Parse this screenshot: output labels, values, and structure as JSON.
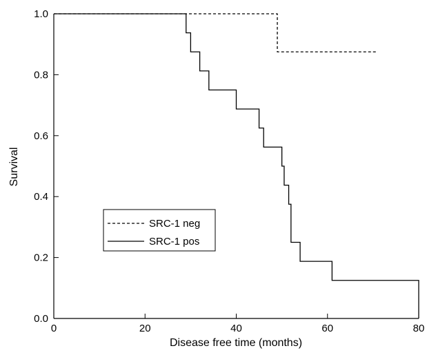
{
  "chart_data": {
    "type": "line",
    "subtype": "step",
    "title": "",
    "xlabel": "Disease free time (months)",
    "ylabel": "Survival",
    "xlim": [
      0,
      80
    ],
    "ylim": [
      0,
      1
    ],
    "xticks": [
      "0",
      "20",
      "40",
      "60",
      "80"
    ],
    "yticks": [
      "0.0",
      "0.2",
      "0.4",
      "0.6",
      "0.8",
      "1.0"
    ],
    "xtick_values": [
      0,
      20,
      40,
      60,
      80
    ],
    "ytick_values": [
      0,
      0.2,
      0.4,
      0.6,
      0.8,
      1.0
    ],
    "grid": false,
    "legend_position": "center-left",
    "series": [
      {
        "name": "SRC-1 neg",
        "style": "dashed",
        "color": "#000000",
        "points": [
          [
            0,
            1.0
          ],
          [
            49,
            1.0
          ],
          [
            49,
            0.875
          ],
          [
            71,
            0.875
          ]
        ]
      },
      {
        "name": "SRC-1 pos",
        "style": "solid",
        "color": "#000000",
        "points": [
          [
            0,
            1.0
          ],
          [
            29,
            1.0
          ],
          [
            29,
            0.9375
          ],
          [
            30,
            0.9375
          ],
          [
            30,
            0.875
          ],
          [
            32,
            0.875
          ],
          [
            32,
            0.8125
          ],
          [
            34,
            0.8125
          ],
          [
            34,
            0.75
          ],
          [
            40,
            0.75
          ],
          [
            40,
            0.6875
          ],
          [
            45,
            0.6875
          ],
          [
            45,
            0.625
          ],
          [
            46,
            0.625
          ],
          [
            46,
            0.5625
          ],
          [
            50,
            0.5625
          ],
          [
            50,
            0.5
          ],
          [
            50.5,
            0.5
          ],
          [
            50.5,
            0.4375
          ],
          [
            51.5,
            0.4375
          ],
          [
            51.5,
            0.375
          ],
          [
            52,
            0.375
          ],
          [
            52,
            0.25
          ],
          [
            54,
            0.25
          ],
          [
            54,
            0.1875
          ],
          [
            61,
            0.1875
          ],
          [
            61,
            0.125
          ],
          [
            80,
            0.125
          ],
          [
            80,
            0.0
          ]
        ]
      }
    ]
  }
}
